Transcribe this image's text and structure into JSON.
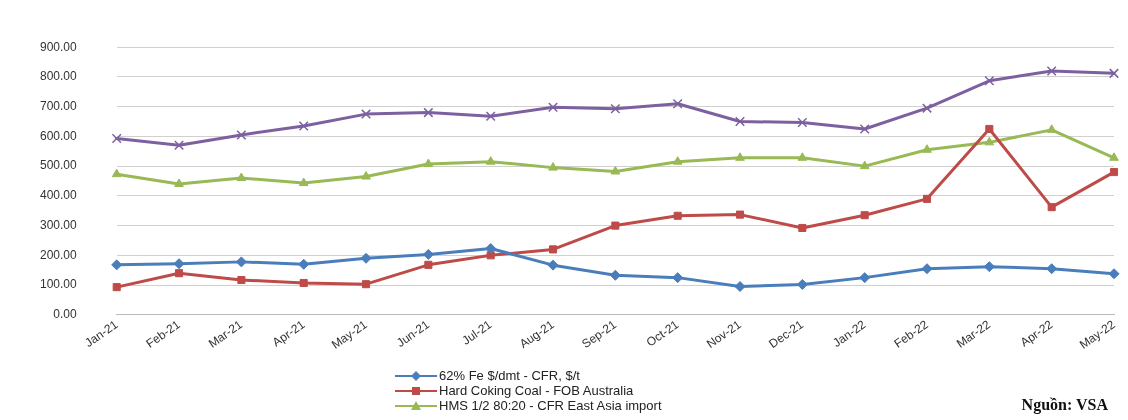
{
  "chart_data": {
    "type": "line",
    "categories": [
      "Jan-21",
      "Feb-21",
      "Mar-21",
      "Apr-21",
      "May-21",
      "Jun-21",
      "Jul-21",
      "Aug-21",
      "Sep-21",
      "Oct-21",
      "Nov-21",
      "Dec-21",
      "Jan-22",
      "Feb-22",
      "Mar-22",
      "Apr-22",
      "May-22"
    ],
    "series": [
      {
        "name": "62% Fe $/dmt - CFR, $/t",
        "color": "#4a7ebb",
        "marker": "diamond",
        "values": [
          168,
          172,
          178,
          170,
          190,
          203,
          223,
          167,
          133,
          125,
          95,
          102,
          125,
          155,
          162,
          155,
          138
        ]
      },
      {
        "name": "Hard Coking Coal - FOB Australia",
        "color": "#be4b48",
        "marker": "square",
        "values": [
          93,
          140,
          117,
          107,
          103,
          168,
          200,
          220,
          300,
          333,
          337,
          292,
          335,
          390,
          625,
          362,
          480
        ]
      },
      {
        "name": "HMS 1/2 80:20 - CFR East Asia import",
        "color": "#98b954",
        "marker": "triangle",
        "values": [
          473,
          440,
          460,
          443,
          465,
          507,
          515,
          495,
          482,
          515,
          528,
          528,
          500,
          555,
          580,
          622,
          528
        ]
      },
      {
        "color": "#7d60a0",
        "marker": "cross",
        "values": [
          593,
          570,
          605,
          635,
          675,
          680,
          668,
          698,
          693,
          710,
          650,
          647,
          625,
          695,
          787,
          820,
          812
        ]
      }
    ],
    "ylim": [
      0,
      900
    ],
    "yticks": [
      {
        "value": 0,
        "label": "0.00"
      },
      {
        "value": 100,
        "label": "100.00"
      },
      {
        "value": 200,
        "label": "200.00"
      },
      {
        "value": 300,
        "label": "300.00"
      },
      {
        "value": 400,
        "label": "400.00"
      },
      {
        "value": 500,
        "label": "500.00"
      },
      {
        "value": 600,
        "label": "600.00"
      },
      {
        "value": 700,
        "label": "700.00"
      },
      {
        "value": 800,
        "label": "800.00"
      },
      {
        "value": 900,
        "label": "900.00"
      }
    ],
    "grid": "y",
    "legend": "bottom",
    "line_style": "solid",
    "annotations": [
      "Nguồn: VSA"
    ]
  }
}
